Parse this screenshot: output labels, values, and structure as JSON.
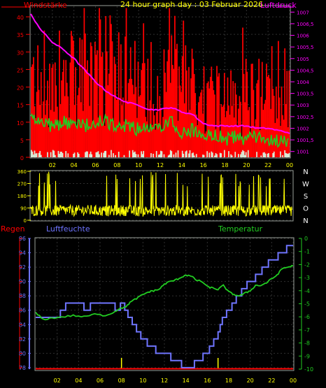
{
  "header": {
    "title": "24 hour graph day : 03 Februar 2026",
    "left_label": "Windstärke",
    "right_label": "Luftdruck"
  },
  "bottom_header": {
    "rain_label": "Regen",
    "humidity_label": "Luftfeuchte",
    "temperature_label": "Temperatur"
  },
  "compass_labels": [
    "N",
    "W",
    "S",
    "O",
    "N"
  ],
  "colors": {
    "wind_gust": "#ff0000",
    "wind_avg": "#22cc22",
    "wind_light": "#d8ecd8",
    "pressure": "#ff00ff",
    "direction": "#ffff00",
    "humidity": "#6f75ff",
    "temperature": "#22cc22",
    "rain": "#ff0000",
    "frame": "#9aa09a",
    "hour_marks": "#ffff00"
  },
  "chart_data": [
    {
      "type": "bar",
      "name": "wind-pressure",
      "x_ticks": [
        "02",
        "04",
        "06",
        "08",
        "10",
        "12",
        "14",
        "16",
        "18",
        "20",
        "22",
        "00"
      ],
      "y_left_ticks": [
        "0",
        "5",
        "10",
        "15",
        "20",
        "25",
        "30",
        "35",
        "40"
      ],
      "y_left_lim": [
        0,
        43
      ],
      "y_right_ticks": [
        "1001",
        "1001,5",
        "1002",
        "1002,5",
        "1003",
        "1003,5",
        "1004",
        "1004,5",
        "1005",
        "1005,5",
        "1006",
        "1006,5",
        "1007"
      ],
      "y_right_lim": [
        1000.75,
        1007.25
      ],
      "hours": [
        0,
        1,
        2,
        3,
        4,
        5,
        6,
        7,
        8,
        9,
        10,
        11,
        12,
        13,
        14,
        15,
        16,
        17,
        18,
        19,
        20,
        21,
        22,
        23,
        24
      ],
      "gust_avg": [
        22,
        24,
        22,
        23,
        21,
        24,
        22,
        26,
        24,
        22,
        21,
        21,
        20,
        23,
        18,
        20,
        17,
        19,
        16,
        16,
        16,
        19,
        17,
        17,
        17
      ],
      "wind_avg": [
        11,
        10,
        9,
        10,
        9,
        9,
        10,
        10,
        9,
        9,
        8,
        8,
        8,
        10,
        7,
        8,
        6,
        7,
        5,
        6,
        5,
        6,
        5,
        5,
        4
      ],
      "pressure": [
        1006.9,
        1006.2,
        1005.7,
        1005.4,
        1005.0,
        1004.5,
        1004.0,
        1003.6,
        1003.3,
        1003.1,
        1003.0,
        1002.8,
        1002.8,
        1002.9,
        1002.7,
        1002.6,
        1002.2,
        1002.1,
        1002.1,
        1002.1,
        1002.1,
        1002.0,
        1002.0,
        1001.9,
        1001.8
      ]
    },
    {
      "type": "line",
      "name": "wind-direction",
      "y_ticks": [
        "0",
        "90",
        "180",
        "270",
        "360"
      ],
      "y_lim": [
        0,
        360
      ],
      "base_direction": [
        70,
        72,
        68,
        75,
        70,
        73,
        70,
        68,
        72,
        70,
        67,
        70,
        72,
        70,
        68,
        70,
        72,
        68,
        70,
        70,
        68,
        72,
        70,
        70,
        70
      ]
    },
    {
      "type": "line",
      "name": "humidity-temperature",
      "x_ticks": [
        "02",
        "04",
        "06",
        "08",
        "10",
        "12",
        "14",
        "16",
        "18",
        "20",
        "22",
        "00"
      ],
      "y_left_ticks": [
        "78",
        "80",
        "82",
        "84",
        "86",
        "88",
        "90",
        "92",
        "94",
        "96"
      ],
      "y_left_lim": [
        77.8,
        96
      ],
      "y_right_ticks": [
        "0",
        "-1",
        "-2",
        "-3",
        "-4",
        "-5",
        "-6",
        "-7",
        "-8",
        "-9",
        "-10"
      ],
      "y_right_lim": [
        -10,
        0
      ],
      "humidity_steps": [
        [
          0,
          85
        ],
        [
          2.3,
          86
        ],
        [
          2.8,
          87
        ],
        [
          4.5,
          86
        ],
        [
          5.1,
          87
        ],
        [
          7.4,
          86
        ],
        [
          7.9,
          87
        ],
        [
          8.3,
          86
        ],
        [
          8.6,
          85
        ],
        [
          9,
          84
        ],
        [
          9.4,
          83
        ],
        [
          9.8,
          82
        ],
        [
          10.4,
          81
        ],
        [
          11.2,
          80
        ],
        [
          12.2,
          80
        ],
        [
          12.6,
          79
        ],
        [
          13.2,
          79
        ],
        [
          13.6,
          78
        ],
        [
          14.4,
          78
        ],
        [
          14.8,
          79
        ],
        [
          15.6,
          80
        ],
        [
          16.2,
          81
        ],
        [
          16.6,
          82
        ],
        [
          17,
          83
        ],
        [
          17.2,
          84
        ],
        [
          17.4,
          85
        ],
        [
          17.8,
          86
        ],
        [
          18.3,
          87
        ],
        [
          18.7,
          88
        ],
        [
          19.2,
          89
        ],
        [
          19.7,
          90
        ],
        [
          20.5,
          91
        ],
        [
          21.1,
          92
        ],
        [
          21.7,
          93
        ],
        [
          22.6,
          94
        ],
        [
          23.4,
          95
        ],
        [
          24,
          95
        ]
      ],
      "temperature": [
        [
          0,
          -5.7
        ],
        [
          0.7,
          -6.2
        ],
        [
          1.5,
          -6.1
        ],
        [
          2.5,
          -6.0
        ],
        [
          3.5,
          -5.9
        ],
        [
          4.5,
          -6.0
        ],
        [
          5.5,
          -5.8
        ],
        [
          6.5,
          -5.9
        ],
        [
          7.4,
          -5.6
        ],
        [
          7.9,
          -5.3
        ],
        [
          8.3,
          -5.3
        ],
        [
          8.8,
          -4.9
        ],
        [
          9.4,
          -4.6
        ],
        [
          10.0,
          -4.3
        ],
        [
          10.5,
          -4.1
        ],
        [
          11.0,
          -4.0
        ],
        [
          11.5,
          -3.9
        ],
        [
          12.0,
          -3.5
        ],
        [
          12.5,
          -3.3
        ],
        [
          13.0,
          -3.2
        ],
        [
          13.5,
          -3.0
        ],
        [
          14.0,
          -2.8
        ],
        [
          14.5,
          -2.9
        ],
        [
          15.0,
          -3.2
        ],
        [
          15.5,
          -3.3
        ],
        [
          16.0,
          -3.7
        ],
        [
          16.5,
          -3.8
        ],
        [
          17.0,
          -3.9
        ],
        [
          17.5,
          -3.6
        ],
        [
          18.0,
          -4.1
        ],
        [
          18.5,
          -4.3
        ],
        [
          19.0,
          -4.4
        ],
        [
          19.5,
          -4.2
        ],
        [
          20.0,
          -4.0
        ],
        [
          20.5,
          -3.6
        ],
        [
          21.0,
          -3.6
        ],
        [
          21.5,
          -3.4
        ],
        [
          22.0,
          -3.1
        ],
        [
          22.5,
          -2.8
        ],
        [
          23.0,
          -2.3
        ],
        [
          23.5,
          -2.2
        ],
        [
          24.0,
          -2.1
        ]
      ],
      "rain": [
        [
          0,
          0
        ],
        [
          24,
          0
        ]
      ],
      "rain_marks": [
        8,
        17
      ]
    }
  ]
}
